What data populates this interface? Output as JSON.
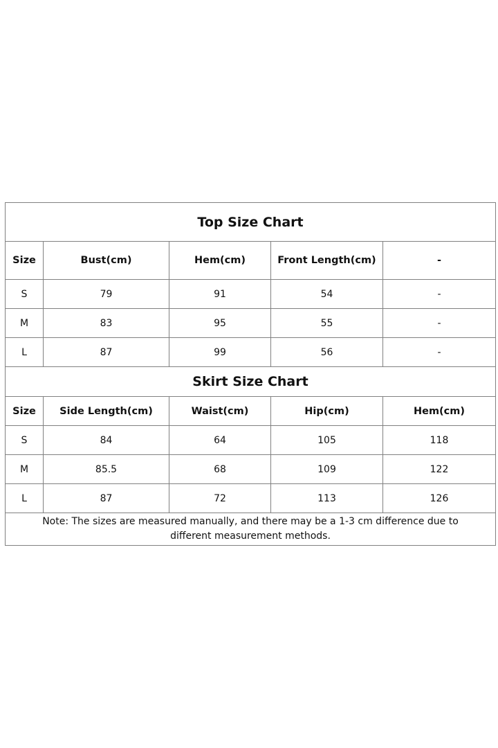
{
  "top_chart": {
    "title": "Top Size Chart",
    "headers": [
      "Size",
      "Bust(cm)",
      "Hem(cm)",
      "Front Length(cm)",
      "-"
    ],
    "rows": [
      [
        "S",
        "79",
        "91",
        "54",
        "-"
      ],
      [
        "M",
        "83",
        "95",
        "55",
        "-"
      ],
      [
        "L",
        "87",
        "99",
        "56",
        "-"
      ]
    ]
  },
  "skirt_chart": {
    "title": "Skirt Size Chart",
    "headers": [
      "Size",
      "Side Length(cm)",
      "Waist(cm)",
      "Hip(cm)",
      "Hem(cm)"
    ],
    "rows": [
      [
        "S",
        "84",
        "64",
        "105",
        "118"
      ],
      [
        "M",
        "85.5",
        "68",
        "109",
        "122"
      ],
      [
        "L",
        "87",
        "72",
        "113",
        "126"
      ]
    ]
  },
  "note": "Note: The sizes are measured manually, and there may be a 1-3 cm difference due to different measurement methods."
}
